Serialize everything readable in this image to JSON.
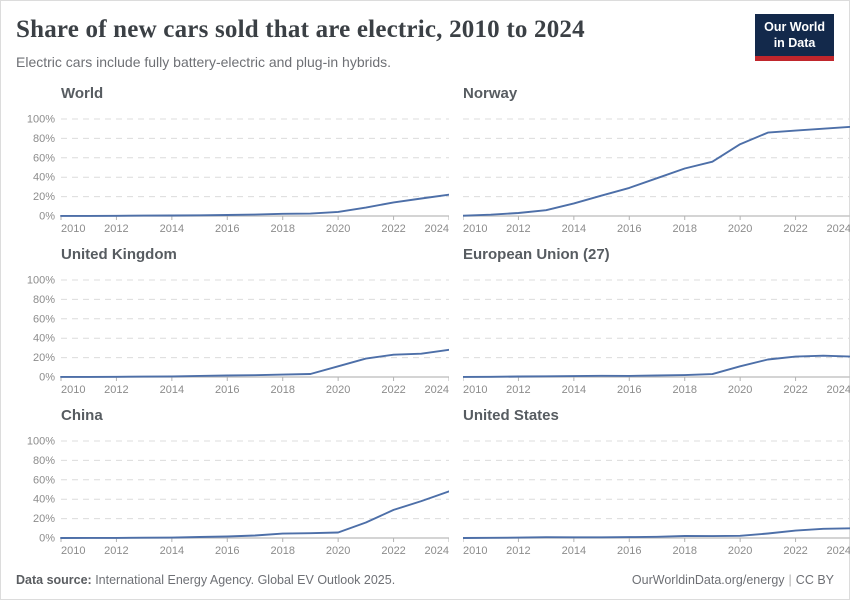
{
  "header": {
    "title": "Share of new cars sold that are electric, 2010 to 2024",
    "subtitle": "Electric cars include fully battery-electric and plug-in hybrids.",
    "logo": {
      "line1": "Our World",
      "line2": "in Data",
      "bg_color": "#13294b",
      "accent_color": "#c0262c"
    }
  },
  "footer": {
    "source_label": "Data source:",
    "source_text": " International Energy Agency. Global EV Outlook 2025.",
    "link": "OurWorldinData.org/energy",
    "separator": "|",
    "license": "CC BY"
  },
  "chart_data": {
    "type": "line",
    "title": "Share of new cars sold that are electric, 2010 to 2024",
    "subtitle": "Electric cars include fully battery-electric and plug-in hybrids.",
    "x": [
      2010,
      2011,
      2012,
      2013,
      2014,
      2015,
      2016,
      2017,
      2018,
      2019,
      2020,
      2021,
      2022,
      2023,
      2024
    ],
    "x_ticks": [
      2010,
      2012,
      2014,
      2016,
      2018,
      2020,
      2022,
      2024
    ],
    "xlabel": "",
    "ylabel": "",
    "ylim": [
      0,
      100
    ],
    "y_ticks": [
      0,
      20,
      40,
      60,
      80,
      100
    ],
    "y_tick_suffix": "%",
    "grid": "dashed-horizontal",
    "legend": "none",
    "line_color": "#4d6fa8",
    "layout": "2-column small multiples; y-axis labels only on left column",
    "facets": [
      {
        "title": "World",
        "show_y_labels": true,
        "values": [
          0.1,
          0.1,
          0.2,
          0.4,
          0.5,
          0.7,
          1.0,
          1.4,
          2.3,
          2.5,
          4.2,
          8.7,
          14,
          18,
          22
        ]
      },
      {
        "title": "Norway",
        "show_y_labels": false,
        "values": [
          0.3,
          1.3,
          3.1,
          6,
          13,
          21,
          29,
          39,
          49,
          56,
          74,
          86,
          88,
          90,
          92
        ]
      },
      {
        "title": "United Kingdom",
        "show_y_labels": true,
        "values": [
          0.1,
          0.1,
          0.2,
          0.4,
          0.6,
          1.1,
          1.5,
          1.9,
          2.5,
          3.1,
          11,
          19,
          23,
          24,
          28
        ]
      },
      {
        "title": "European Union (27)",
        "show_y_labels": false,
        "values": [
          0.1,
          0.2,
          0.5,
          0.7,
          0.9,
          1.2,
          1.1,
          1.5,
          2.0,
          3.0,
          11,
          18,
          21,
          22,
          21
        ]
      },
      {
        "title": "China",
        "show_y_labels": true,
        "values": [
          0.0,
          0.1,
          0.1,
          0.3,
          0.4,
          1.0,
          1.5,
          2.6,
          4.5,
          4.9,
          5.7,
          16,
          29,
          38,
          48
        ]
      },
      {
        "title": "United States",
        "show_y_labels": false,
        "values": [
          0.0,
          0.2,
          0.4,
          0.8,
          0.7,
          0.7,
          0.9,
          1.2,
          2.1,
          2.0,
          2.3,
          4.6,
          7.6,
          9.5,
          10
        ]
      }
    ]
  }
}
